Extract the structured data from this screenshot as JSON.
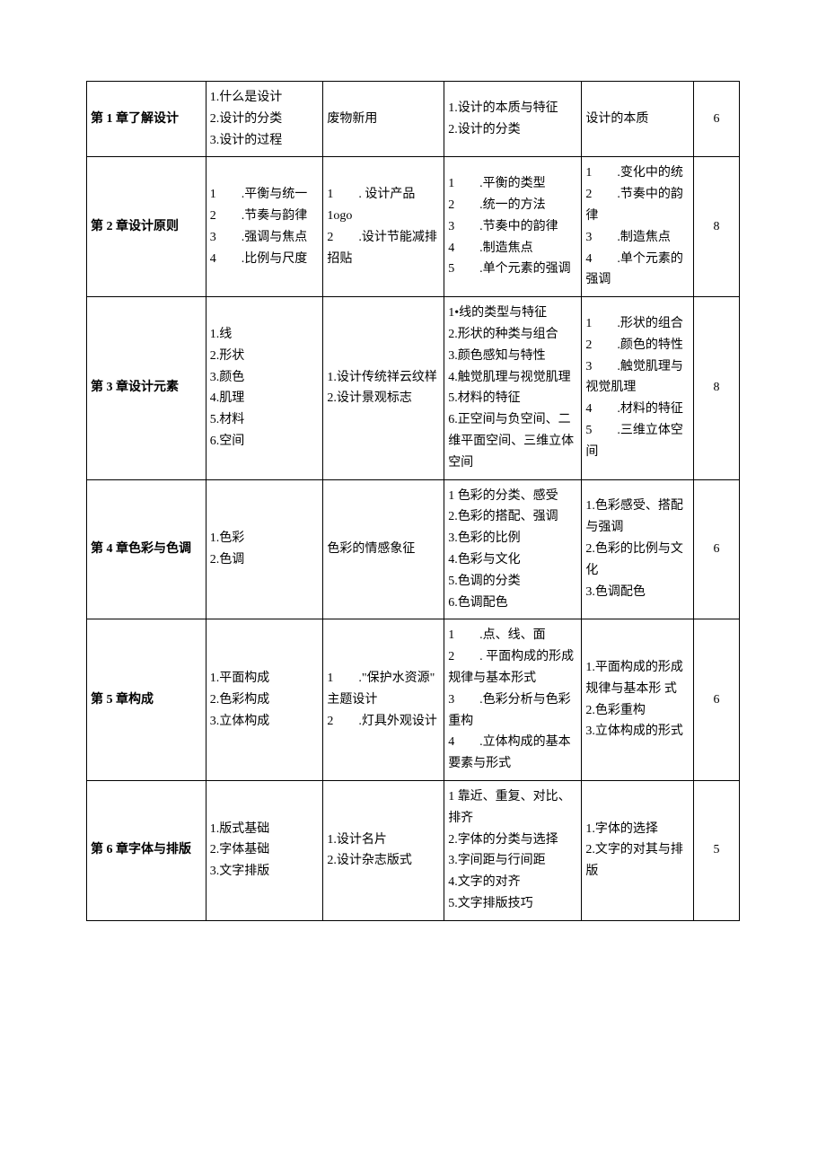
{
  "rows": [
    {
      "chapter": "第 1 章了解设计",
      "col2": "1.什么是设计\n2.设计的分类\n3.设计的过程",
      "col3": "废物新用",
      "col4": "1.设计的本质与特征\n2.设计的分类",
      "col5": "设计的本质",
      "hours": "6"
    },
    {
      "chapter": "第 2 章设计原则",
      "col2": "1　　.平衡与统一\n2　　.节奏与韵律\n3　　.强调与焦点\n4　　.比例与尺度",
      "col3": "1　　. 设计产品1ogo\n2　　.设计节能减排招贴",
      "col4": "1　　.平衡的类型\n2　　.统一的方法\n3　　.节奏中的韵律\n4　　.制造焦点\n5　　.单个元素的强调",
      "col5": "1　　.变化中的统\n2　　.节奏中的韵律\n3　　.制造焦点\n4　　.单个元素的强调",
      "hours": "8"
    },
    {
      "chapter": "第 3 章设计元素",
      "col2": "1.线\n2.形状\n3.颜色\n4.肌理\n5.材料\n6.空间",
      "col3": "1.设计传统祥云纹样\n2.设计景观标志",
      "col4": "1•线的类型与特征\n2.形状的种类与组合\n3.颜色感知与特性\n4.触觉肌理与视觉肌理\n5.材料的特征\n6.正空间与负空间、二维平面空间、三维立体空间",
      "col5": "1　　.形状的组合\n2　　.颜色的特性\n3　　.触觉肌理与视觉肌理\n4　　.材料的特征\n5　　.三维立体空间",
      "hours": "8"
    },
    {
      "chapter": "第 4 章色彩与色调",
      "col2": "1.色彩\n2.色调",
      "col3": "色彩的情感象征",
      "col4": "1 色彩的分类、感受\n2.色彩的搭配、强调\n3.色彩的比例\n4.色彩与文化\n5.色调的分类\n6.色调配色",
      "col5": "1.色彩感受、搭配与强调\n2.色彩的比例与文化\n3.色调配色",
      "hours": "6"
    },
    {
      "chapter": "第 5 章构成",
      "col2": "1.平面构成\n2.色彩构成\n3.立体构成",
      "col3": "1　　.\"保护水资源\"\n主题设计\n2　　.灯具外观设计",
      "col4": "1　　.点、线、面\n2　　. 平面构成的形成规律与基本形式\n3　　.色彩分析与色彩重构\n4　　.立体构成的基本要素与形式",
      "col5": "1.平面构成的形成规律与基本形 式\n2.色彩重构\n3.立体构成的形式",
      "hours": "6"
    },
    {
      "chapter": "第 6 章字体与排版",
      "col2": "1.版式基础\n2.字体基础\n3.文字排版",
      "col3": "1.设计名片\n2.设计杂志版式",
      "col4": "1 靠近、重复、对比、排齐\n2.字体的分类与选择\n3.字间距与行间距\n4.文字的对齐\n5.文字排版技巧",
      "col5": "1.字体的选择\n2.文字的对其与排版",
      "hours": "5"
    }
  ],
  "column_widths": [
    "130px",
    "128px",
    "132px",
    "150px",
    "122px",
    "50px"
  ],
  "font_family": "SimSun",
  "font_size": 14,
  "border_color": "#000000",
  "background_color": "#ffffff"
}
